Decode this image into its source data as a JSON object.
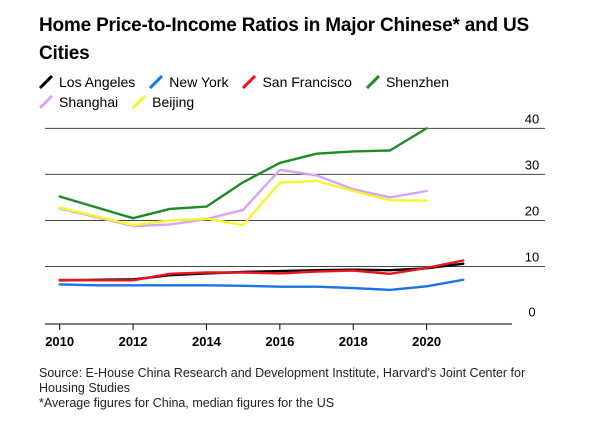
{
  "chart_data": {
    "type": "line",
    "title": "Home Price-to-Income Ratios in Major Chinese* and US Cities",
    "xlabel": "",
    "ylabel": "",
    "x": [
      2010,
      2011,
      2012,
      2013,
      2014,
      2015,
      2016,
      2017,
      2018,
      2019,
      2020,
      2021
    ],
    "xticks": [
      2010,
      2012,
      2014,
      2016,
      2018,
      2020
    ],
    "yticks": [
      0,
      10,
      20,
      30,
      40
    ],
    "xlim": [
      2009.6,
      2022.0
    ],
    "ylim": [
      -2.5,
      44
    ],
    "grid": "horizontal",
    "legend_position": "top-left",
    "series": [
      {
        "name": "Los Angeles",
        "color": "#000000",
        "x": [
          2010,
          2011,
          2012,
          2013,
          2014,
          2015,
          2016,
          2017,
          2018,
          2019,
          2020,
          2021
        ],
        "values": [
          7.0,
          7.1,
          7.2,
          8.1,
          8.5,
          8.8,
          9.0,
          9.2,
          9.3,
          9.2,
          9.6,
          10.6
        ]
      },
      {
        "name": "New York",
        "color": "#1a73e8",
        "x": [
          2010,
          2011,
          2012,
          2013,
          2014,
          2015,
          2016,
          2017,
          2018,
          2019,
          2020,
          2021
        ],
        "values": [
          6.1,
          5.9,
          5.9,
          5.9,
          5.9,
          5.8,
          5.6,
          5.6,
          5.3,
          4.9,
          5.7,
          7.1
        ]
      },
      {
        "name": "San Francisco",
        "color": "#e8141e",
        "x": [
          2010,
          2011,
          2012,
          2013,
          2014,
          2015,
          2016,
          2017,
          2018,
          2019,
          2020,
          2021
        ],
        "values": [
          7.1,
          7.0,
          7.0,
          8.4,
          8.7,
          8.7,
          8.5,
          8.9,
          9.1,
          8.4,
          9.7,
          11.3
        ]
      },
      {
        "name": "Shenzhen",
        "color": "#1f8a26",
        "x": [
          2010,
          2012,
          2013,
          2014,
          2015,
          2016,
          2017,
          2018,
          2019,
          2020
        ],
        "values": [
          25.2,
          20.5,
          22.5,
          23.0,
          28.3,
          32.5,
          34.5,
          35.0,
          35.2,
          40.0
        ]
      },
      {
        "name": "Shanghai",
        "color": "#d4a6f0",
        "x": [
          2010,
          2012,
          2013,
          2014,
          2015,
          2016,
          2017,
          2018,
          2019,
          2020
        ],
        "values": [
          22.6,
          18.8,
          19.1,
          20.3,
          22.3,
          31.0,
          29.8,
          26.8,
          25.0,
          26.4
        ]
      },
      {
        "name": "Beijing",
        "color": "#f5f532",
        "x": [
          2010,
          2012,
          2013,
          2014,
          2015,
          2016,
          2017,
          2018,
          2019,
          2020
        ],
        "values": [
          22.8,
          19.0,
          20.0,
          20.4,
          19.0,
          28.2,
          28.6,
          26.4,
          24.4,
          24.3
        ]
      }
    ]
  },
  "source": {
    "line1": "Source: E-House China Research and Development Institute, Harvard’s Joint Center for Housing Studies",
    "line2": "*Average figures for China, median figures for the US"
  }
}
